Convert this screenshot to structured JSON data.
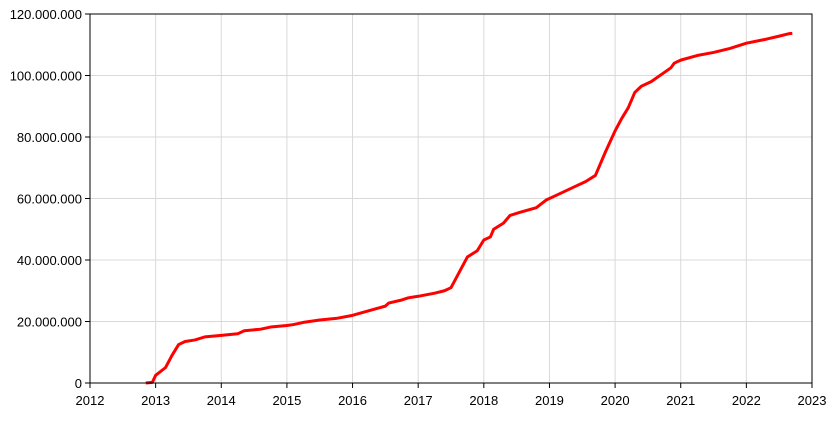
{
  "chart_data": {
    "type": "line",
    "x": [
      2012.85,
      2012.95,
      2013.0,
      2013.15,
      2013.25,
      2013.35,
      2013.45,
      2013.6,
      2013.75,
      2014.0,
      2014.25,
      2014.35,
      2014.6,
      2014.75,
      2015.0,
      2015.1,
      2015.25,
      2015.5,
      2015.75,
      2016.0,
      2016.25,
      2016.5,
      2016.55,
      2016.75,
      2016.85,
      2017.0,
      2017.25,
      2017.4,
      2017.5,
      2017.55,
      2017.65,
      2017.75,
      2017.9,
      2018.0,
      2018.1,
      2018.15,
      2018.3,
      2018.4,
      2018.55,
      2018.8,
      2018.95,
      2019.1,
      2019.25,
      2019.4,
      2019.55,
      2019.7,
      2019.85,
      2020.0,
      2020.1,
      2020.2,
      2020.3,
      2020.4,
      2020.55,
      2020.75,
      2020.85,
      2020.9,
      2021.0,
      2021.25,
      2021.5,
      2021.75,
      2022.0,
      2022.3,
      2022.5,
      2022.65,
      2022.7
    ],
    "series": [
      {
        "color": "#ff0000",
        "values": [
          0,
          200000,
          2500000,
          5000000,
          9000000,
          12500000,
          13500000,
          14000000,
          15000000,
          15500000,
          16000000,
          17000000,
          17500000,
          18200000,
          18700000,
          19000000,
          19700000,
          20500000,
          21000000,
          22000000,
          23500000,
          25000000,
          26000000,
          27000000,
          27700000,
          28200000,
          29200000,
          30000000,
          31000000,
          33000000,
          37000000,
          41000000,
          43000000,
          46500000,
          47500000,
          50000000,
          52000000,
          54500000,
          55500000,
          57000000,
          59500000,
          61000000,
          62500000,
          64000000,
          65500000,
          67500000,
          75000000,
          82000000,
          86000000,
          89500000,
          94500000,
          96500000,
          98000000,
          101000000,
          102500000,
          104000000,
          105000000,
          106500000,
          107500000,
          108800000,
          110500000,
          111800000,
          112800000,
          113600000,
          113700000
        ]
      }
    ],
    "xlim": [
      2012,
      2023
    ],
    "xticks": [
      2012,
      2013,
      2014,
      2015,
      2016,
      2017,
      2018,
      2019,
      2020,
      2021,
      2022,
      2023
    ],
    "ylim": [
      0,
      120000000
    ],
    "yticks": [
      {
        "value": 0,
        "label": "0"
      },
      {
        "value": 20000000,
        "label": "20.000.000"
      },
      {
        "value": 40000000,
        "label": "40.000.000"
      },
      {
        "value": 60000000,
        "label": "60.000.000"
      },
      {
        "value": 80000000,
        "label": "80.000.000"
      },
      {
        "value": 100000000,
        "label": "100.000.000"
      },
      {
        "value": 120000000,
        "label": "120.000.000"
      }
    ],
    "grid": true
  }
}
